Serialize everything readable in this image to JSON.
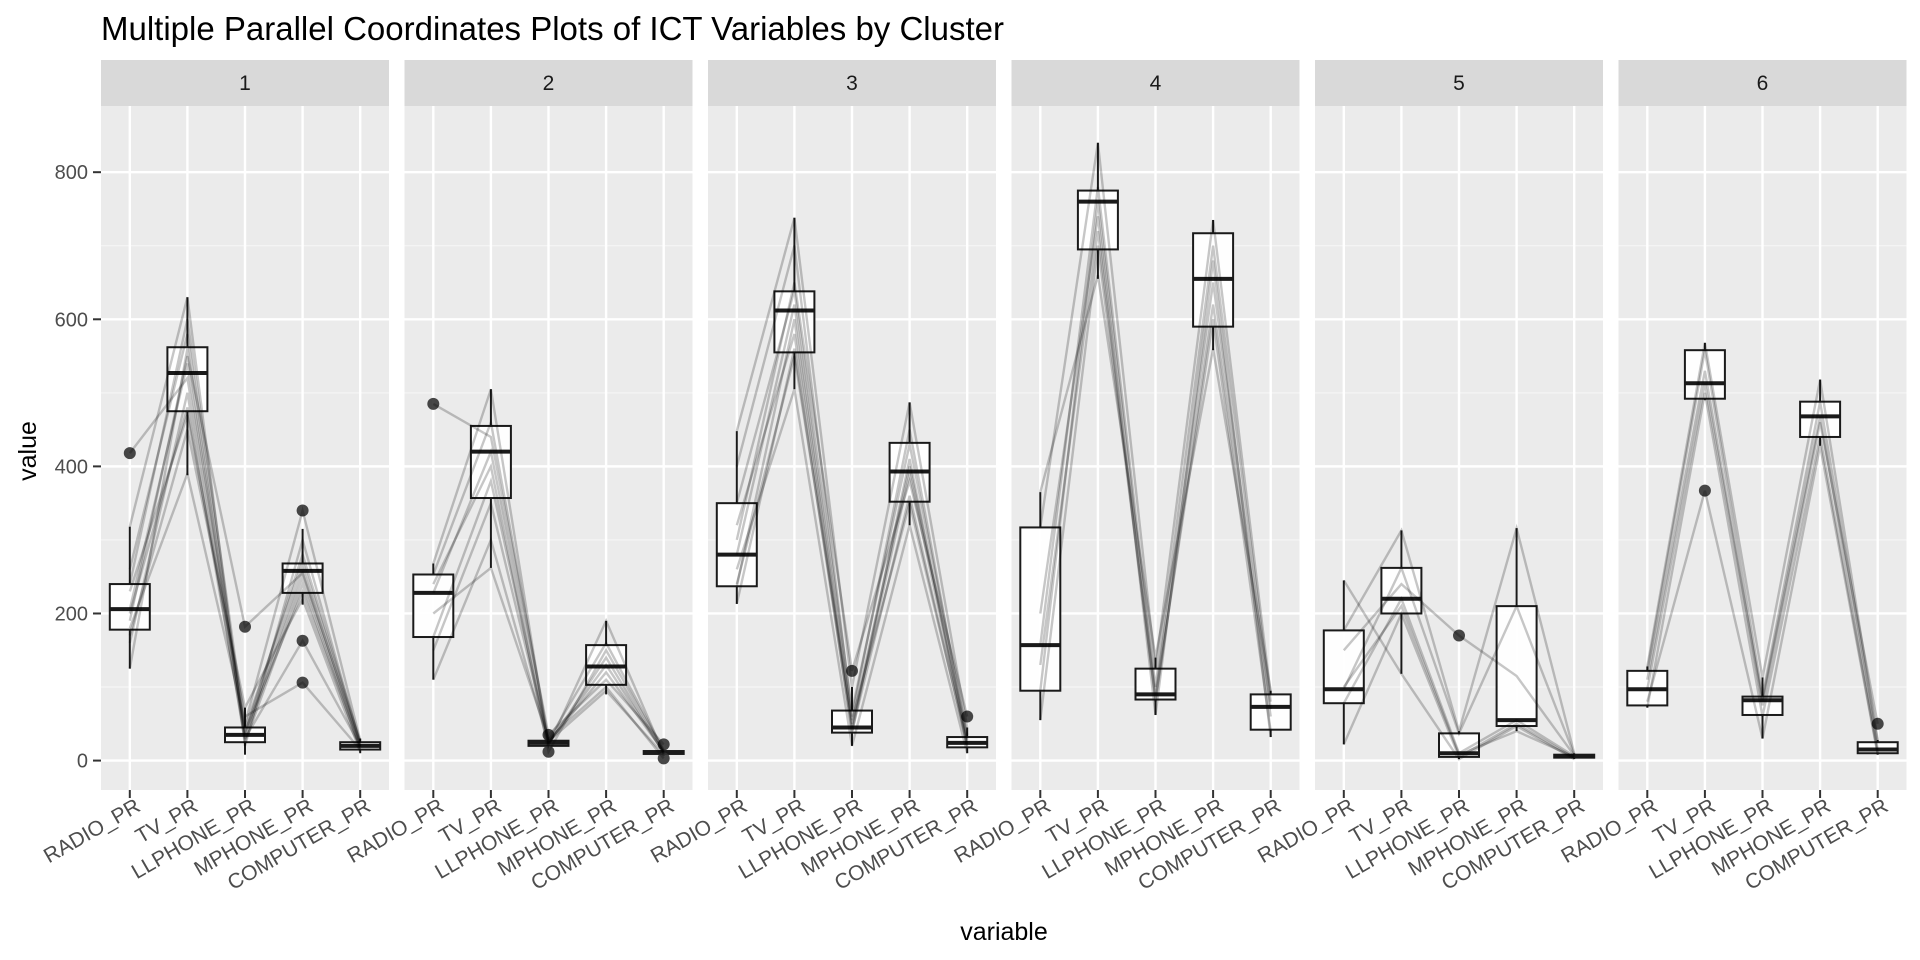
{
  "chart_data": {
    "type": "boxplot-parallel-coordinates",
    "title": "Multiple Parallel Coordinates Plots of ICT Variables by Cluster",
    "xlabel": "variable",
    "ylabel": "value",
    "ylim": [
      -40,
      890
    ],
    "yticks": [
      0,
      200,
      400,
      600,
      800
    ],
    "grid": true,
    "variables": [
      "RADIO_PR",
      "TV_PR",
      "LLPHONE_PR",
      "MPHONE_PR",
      "COMPUTER_PR"
    ],
    "panels": [
      {
        "label": "1",
        "boxes": [
          {
            "min": 125,
            "q1": 178,
            "median": 206,
            "q3": 240,
            "max": 318,
            "outliers": [
              418
            ]
          },
          {
            "min": 388,
            "q1": 475,
            "median": 527,
            "q3": 562,
            "max": 630,
            "outliers": []
          },
          {
            "min": 8,
            "q1": 25,
            "median": 35,
            "q3": 45,
            "max": 72,
            "outliers": [
              182
            ]
          },
          {
            "min": 212,
            "q1": 228,
            "median": 258,
            "q3": 268,
            "max": 315,
            "outliers": [
              340,
              163,
              106
            ]
          },
          {
            "min": 10,
            "q1": 15,
            "median": 20,
            "q3": 25,
            "max": 30,
            "outliers": []
          }
        ],
        "lines": [
          [
            125,
            560,
            30,
            250,
            18
          ],
          [
            160,
            500,
            25,
            240,
            15
          ],
          [
            206,
            540,
            35,
            260,
            20
          ],
          [
            240,
            600,
            45,
            270,
            25
          ],
          [
            318,
            630,
            20,
            300,
            22
          ],
          [
            418,
            520,
            40,
            230,
            18
          ],
          [
            180,
            390,
            50,
            340,
            28
          ],
          [
            200,
            480,
            30,
            163,
            20
          ],
          [
            230,
            470,
            60,
            106,
            15
          ],
          [
            190,
            550,
            182,
            255,
            24
          ],
          [
            260,
            580,
            38,
            280,
            26
          ],
          [
            170,
            450,
            72,
            220,
            12
          ]
        ]
      },
      {
        "label": "2",
        "boxes": [
          {
            "min": 110,
            "q1": 168,
            "median": 228,
            "q3": 253,
            "max": 268,
            "outliers": [
              485
            ]
          },
          {
            "min": 262,
            "q1": 357,
            "median": 420,
            "q3": 455,
            "max": 505,
            "outliers": []
          },
          {
            "min": 18,
            "q1": 20,
            "median": 24,
            "q3": 27,
            "max": 32,
            "outliers": [
              35,
              12
            ]
          },
          {
            "min": 90,
            "q1": 103,
            "median": 128,
            "q3": 157,
            "max": 190,
            "outliers": []
          },
          {
            "min": 6,
            "q1": 9,
            "median": 11,
            "q3": 13,
            "max": 15,
            "outliers": [
              22,
              3
            ]
          }
        ],
        "lines": [
          [
            110,
            300,
            22,
            140,
            10
          ],
          [
            168,
            380,
            25,
            120,
            12
          ],
          [
            228,
            420,
            24,
            130,
            11
          ],
          [
            253,
            460,
            28,
            160,
            14
          ],
          [
            268,
            505,
            20,
            190,
            9
          ],
          [
            485,
            440,
            35,
            110,
            22
          ],
          [
            200,
            262,
            30,
            100,
            3
          ],
          [
            240,
            400,
            12,
            150,
            13
          ],
          [
            150,
            350,
            26,
            95,
            8
          ]
        ]
      },
      {
        "label": "3",
        "boxes": [
          {
            "min": 213,
            "q1": 237,
            "median": 280,
            "q3": 350,
            "max": 448,
            "outliers": []
          },
          {
            "min": 505,
            "q1": 555,
            "median": 612,
            "q3": 638,
            "max": 738,
            "outliers": []
          },
          {
            "min": 20,
            "q1": 38,
            "median": 45,
            "q3": 68,
            "max": 100,
            "outliers": [
              122
            ]
          },
          {
            "min": 320,
            "q1": 352,
            "median": 393,
            "q3": 432,
            "max": 487,
            "outliers": []
          },
          {
            "min": 10,
            "q1": 18,
            "median": 24,
            "q3": 32,
            "max": 45,
            "outliers": [
              60
            ]
          }
        ],
        "lines": [
          [
            213,
            560,
            40,
            360,
            20
          ],
          [
            237,
            600,
            45,
            390,
            25
          ],
          [
            280,
            620,
            50,
            400,
            30
          ],
          [
            350,
            640,
            68,
            430,
            35
          ],
          [
            400,
            700,
            60,
            450,
            28
          ],
          [
            448,
            738,
            100,
            487,
            45
          ],
          [
            260,
            505,
            20,
            320,
            10
          ],
          [
            300,
            650,
            122,
            380,
            60
          ],
          [
            320,
            580,
            38,
            410,
            18
          ],
          [
            240,
            550,
            55,
            350,
            22
          ]
        ]
      },
      {
        "label": "4",
        "boxes": [
          {
            "min": 55,
            "q1": 95,
            "median": 157,
            "q3": 317,
            "max": 365,
            "outliers": []
          },
          {
            "min": 655,
            "q1": 695,
            "median": 760,
            "q3": 775,
            "max": 840,
            "outliers": []
          },
          {
            "min": 62,
            "q1": 83,
            "median": 90,
            "q3": 125,
            "max": 140,
            "outliers": []
          },
          {
            "min": 558,
            "q1": 590,
            "median": 655,
            "q3": 717,
            "max": 735,
            "outliers": []
          },
          {
            "min": 32,
            "q1": 42,
            "median": 73,
            "q3": 90,
            "max": 95,
            "outliers": []
          }
        ],
        "lines": [
          [
            55,
            700,
            85,
            600,
            40
          ],
          [
            95,
            760,
            90,
            650,
            70
          ],
          [
            157,
            780,
            100,
            700,
            80
          ],
          [
            317,
            840,
            125,
            735,
            90
          ],
          [
            365,
            660,
            140,
            560,
            95
          ],
          [
            200,
            740,
            62,
            680,
            32
          ],
          [
            130,
            720,
            80,
            620,
            60
          ]
        ]
      },
      {
        "label": "5",
        "boxes": [
          {
            "min": 22,
            "q1": 78,
            "median": 97,
            "q3": 177,
            "max": 245,
            "outliers": []
          },
          {
            "min": 118,
            "q1": 200,
            "median": 220,
            "q3": 262,
            "max": 313,
            "outliers": []
          },
          {
            "min": 2,
            "q1": 5,
            "median": 10,
            "q3": 37,
            "max": 40,
            "outliers": [
              170
            ]
          },
          {
            "min": 40,
            "q1": 47,
            "median": 55,
            "q3": 210,
            "max": 316,
            "outliers": []
          },
          {
            "min": 2,
            "q1": 4,
            "median": 6,
            "q3": 8,
            "max": 10,
            "outliers": []
          }
        ],
        "lines": [
          [
            22,
            200,
            5,
            50,
            4
          ],
          [
            78,
            220,
            10,
            55,
            6
          ],
          [
            97,
            262,
            37,
            210,
            8
          ],
          [
            177,
            313,
            40,
            316,
            10
          ],
          [
            245,
            118,
            2,
            47,
            2
          ],
          [
            150,
            240,
            170,
            115,
            7
          ],
          [
            100,
            210,
            8,
            40,
            5
          ]
        ]
      },
      {
        "label": "6",
        "boxes": [
          {
            "min": 72,
            "q1": 75,
            "median": 97,
            "q3": 122,
            "max": 128,
            "outliers": []
          },
          {
            "min": 490,
            "q1": 492,
            "median": 513,
            "q3": 558,
            "max": 568,
            "outliers": [
              367
            ]
          },
          {
            "min": 30,
            "q1": 62,
            "median": 82,
            "q3": 87,
            "max": 113,
            "outliers": []
          },
          {
            "min": 428,
            "q1": 440,
            "median": 468,
            "q3": 488,
            "max": 518,
            "outliers": []
          },
          {
            "min": 8,
            "q1": 10,
            "median": 15,
            "q3": 25,
            "max": 28,
            "outliers": [
              50
            ]
          }
        ],
        "lines": [
          [
            72,
            500,
            60,
            440,
            10
          ],
          [
            97,
            513,
            82,
            468,
            15
          ],
          [
            122,
            558,
            87,
            488,
            25
          ],
          [
            128,
            568,
            113,
            518,
            28
          ],
          [
            80,
            367,
            30,
            428,
            8
          ],
          [
            110,
            530,
            75,
            460,
            50
          ]
        ]
      }
    ]
  }
}
